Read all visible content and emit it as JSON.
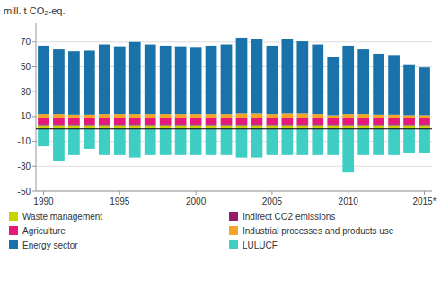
{
  "chart_data": {
    "type": "bar",
    "stacked": true,
    "grid": true,
    "legend": "bottom",
    "y_label": "mill. t CO₂-eq.",
    "categories": [
      "1990",
      null,
      null,
      null,
      null,
      "1995",
      null,
      null,
      null,
      null,
      "2000",
      null,
      null,
      null,
      null,
      "2005",
      null,
      null,
      null,
      null,
      "2010",
      null,
      null,
      null,
      null,
      "2015*"
    ],
    "series": [
      {
        "name": "Waste management",
        "color": "#c8d400",
        "values": [
          3.0,
          3.0,
          3.0,
          3.0,
          3.0,
          3.0,
          3.0,
          3.0,
          3.0,
          3.0,
          3.0,
          3.0,
          3.0,
          3.0,
          3.0,
          3.0,
          3.0,
          3.0,
          3.0,
          3.0,
          3.0,
          3.0,
          3.0,
          3.0,
          3.0,
          3.0
        ]
      },
      {
        "name": "Indirect CO2 emissions",
        "color": "#971b6b",
        "values": [
          1.0,
          1.0,
          1.0,
          1.0,
          1.0,
          1.0,
          1.0,
          1.0,
          1.0,
          1.0,
          1.0,
          1.0,
          1.0,
          1.0,
          1.0,
          1.0,
          1.0,
          1.0,
          1.0,
          1.0,
          1.0,
          1.0,
          1.0,
          1.0,
          1.0,
          1.0
        ]
      },
      {
        "name": "Agriculture",
        "color": "#e8177a",
        "values": [
          4.5,
          4.5,
          4.5,
          4.5,
          4.5,
          4.5,
          4.5,
          4.5,
          4.5,
          4.5,
          4.5,
          4.5,
          4.5,
          4.5,
          4.5,
          4.5,
          4.5,
          4.5,
          4.5,
          4.5,
          4.5,
          4.5,
          4.5,
          4.5,
          4.5,
          4.5
        ]
      },
      {
        "name": "Industrial processes and products use",
        "color": "#f5a428",
        "values": [
          3.5,
          3.5,
          3.0,
          3.0,
          3.5,
          3.5,
          3.5,
          3.5,
          3.5,
          3.5,
          3.5,
          3.5,
          3.5,
          4.0,
          4.0,
          3.5,
          4.0,
          4.0,
          3.5,
          2.5,
          3.5,
          3.5,
          3.0,
          3.0,
          2.5,
          2.5
        ]
      },
      {
        "name": "Energy sector",
        "color": "#1a72aa",
        "values": [
          55.0,
          52.0,
          51.0,
          51.5,
          56.0,
          54.5,
          58.0,
          56.0,
          55.0,
          54.5,
          54.0,
          55.0,
          56.0,
          61.0,
          60.0,
          55.0,
          59.5,
          58.0,
          56.0,
          47.0,
          55.0,
          52.0,
          49.0,
          48.0,
          41.0,
          38.5
        ]
      },
      {
        "name": "LULUCF",
        "color": "#3ecec4",
        "values": [
          -14.0,
          -26.0,
          -21.0,
          -16.0,
          -21.0,
          -21.0,
          -23.0,
          -21.0,
          -21.0,
          -21.0,
          -21.0,
          -21.0,
          -21.0,
          -23.0,
          -23.0,
          -21.0,
          -21.0,
          -21.0,
          -21.0,
          -21.0,
          -35.0,
          -21.0,
          -21.0,
          -21.0,
          -19.0,
          -19.0
        ]
      }
    ],
    "ylim": [
      -50,
      85
    ],
    "yticks": [
      -50,
      -30,
      -10,
      10,
      30,
      50,
      70
    ]
  }
}
